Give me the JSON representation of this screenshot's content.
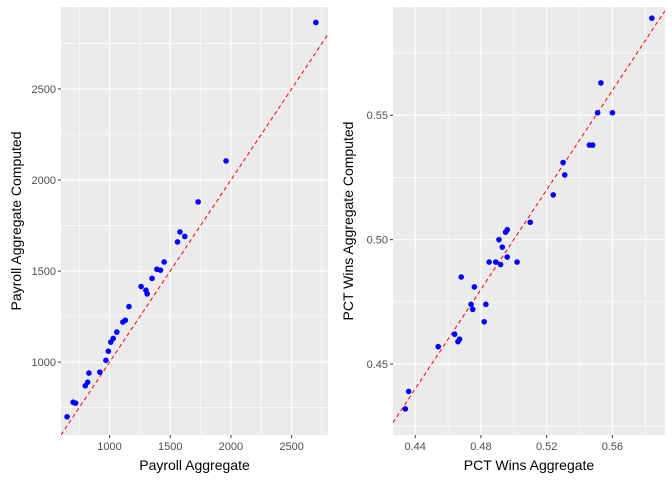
{
  "chart_data": [
    {
      "type": "scatter",
      "xlabel": "Payroll Aggregate",
      "ylabel": "Payroll Aggregate Computed",
      "xlim": [
        600,
        2800
      ],
      "ylim": [
        600,
        2950
      ],
      "x_ticks": [
        1000,
        1500,
        2000,
        2500
      ],
      "y_ticks": [
        1000,
        1500,
        2000,
        2500
      ],
      "x_tick_labels": [
        "1000",
        "1500",
        "2000",
        "2500"
      ],
      "y_tick_labels": [
        "1000",
        "1500",
        "2000",
        "2500"
      ],
      "grid": true,
      "reference_line": {
        "style": "dashed",
        "color": "#ff0000",
        "slope": 1,
        "intercept": 0
      },
      "point_color": "#0000ff",
      "x": [
        650,
        700,
        720,
        800,
        820,
        830,
        920,
        970,
        990,
        1010,
        1030,
        1060,
        1110,
        1130,
        1160,
        1260,
        1300,
        1310,
        1350,
        1390,
        1420,
        1450,
        1560,
        1580,
        1620,
        1730,
        1960,
        2700
      ],
      "y": [
        700,
        780,
        775,
        870,
        890,
        940,
        945,
        1010,
        1060,
        1110,
        1130,
        1165,
        1220,
        1230,
        1305,
        1415,
        1395,
        1375,
        1460,
        1510,
        1505,
        1550,
        1660,
        1715,
        1690,
        1880,
        2105,
        2865
      ]
    },
    {
      "type": "scatter",
      "xlabel": "PCT Wins Aggregate",
      "ylabel": "PCT Wins Aggregate Computed",
      "xlim": [
        0.4265,
        0.592
      ],
      "ylim": [
        0.4215,
        0.5935
      ],
      "x_ticks": [
        0.44,
        0.48,
        0.52,
        0.56
      ],
      "y_ticks": [
        0.45,
        0.5,
        0.55
      ],
      "x_tick_labels": [
        "0.44",
        "0.48",
        "0.52",
        "0.56"
      ],
      "y_tick_labels": [
        "0.45",
        "0.50",
        "0.55"
      ],
      "grid": true,
      "reference_line": {
        "style": "dashed",
        "color": "#ff0000",
        "slope": 1,
        "intercept": 0
      },
      "point_color": "#0000ff",
      "x": [
        0.434,
        0.436,
        0.454,
        0.464,
        0.466,
        0.467,
        0.468,
        0.474,
        0.475,
        0.476,
        0.482,
        0.483,
        0.485,
        0.489,
        0.491,
        0.492,
        0.493,
        0.495,
        0.496,
        0.496,
        0.502,
        0.51,
        0.524,
        0.53,
        0.531,
        0.546,
        0.548,
        0.551,
        0.553,
        0.56,
        0.584
      ],
      "y": [
        0.432,
        0.439,
        0.457,
        0.462,
        0.459,
        0.46,
        0.485,
        0.474,
        0.472,
        0.481,
        0.467,
        0.474,
        0.491,
        0.491,
        0.5,
        0.49,
        0.497,
        0.503,
        0.504,
        0.493,
        0.491,
        0.507,
        0.518,
        0.531,
        0.526,
        0.538,
        0.538,
        0.551,
        0.563,
        0.551,
        0.589
      ]
    }
  ]
}
